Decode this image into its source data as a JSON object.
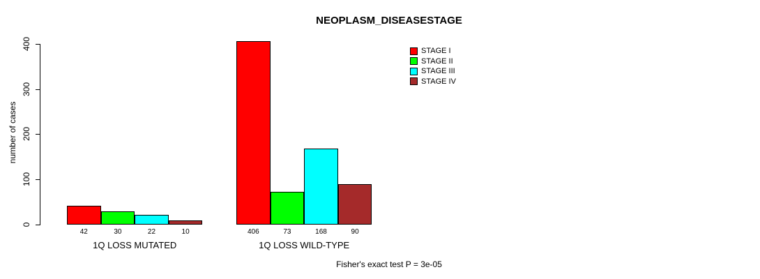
{
  "chart_data": {
    "type": "bar",
    "title": "NEOPLASM_DISEASESTAGE",
    "ylabel": "number of cases",
    "xlabel": "",
    "groups": [
      "1Q LOSS MUTATED",
      "1Q LOSS WILD-TYPE"
    ],
    "series": [
      {
        "name": "STAGE I",
        "color": "#FF0000",
        "values": [
          42,
          406
        ]
      },
      {
        "name": "STAGE II",
        "color": "#00FF00",
        "values": [
          30,
          73
        ]
      },
      {
        "name": "STAGE III",
        "color": "#00FFFF",
        "values": [
          22,
          168
        ]
      },
      {
        "name": "STAGE IV",
        "color": "#A52A2A",
        "values": [
          10,
          90
        ]
      }
    ],
    "bar_value_labels": [
      [
        "42",
        "30",
        "22",
        "10"
      ],
      [
        "406",
        "73",
        "168",
        "90"
      ]
    ],
    "yticks": [
      0,
      100,
      200,
      300,
      400
    ],
    "ylim": [
      0,
      420
    ],
    "grid": false,
    "legend_position": "top-right",
    "annotation": "Fisher's exact test P = 3e-05"
  }
}
